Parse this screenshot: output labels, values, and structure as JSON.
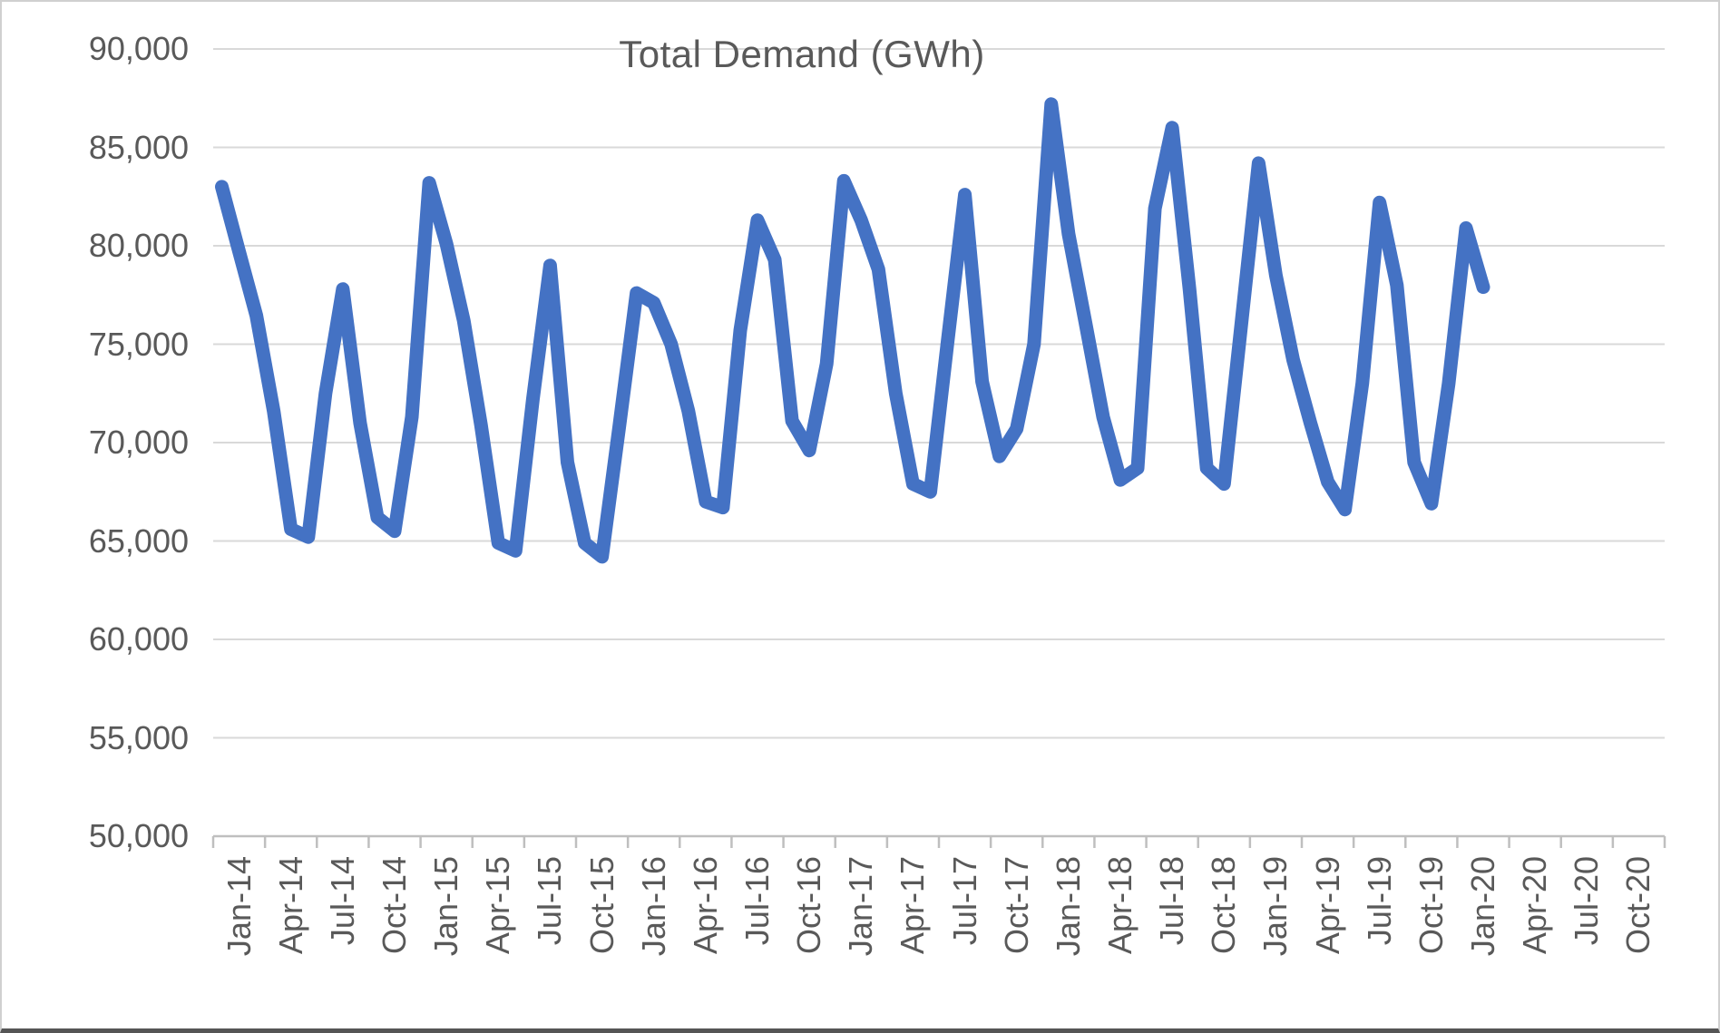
{
  "title": "Total Demand (GWh)",
  "chart_data": {
    "type": "line",
    "title": "Total Demand (GWh)",
    "xlabel": "",
    "ylabel": "",
    "legend": "none",
    "grid": "horizontal",
    "ylim": [
      50000,
      90000
    ],
    "y_ticks": [
      50000,
      55000,
      60000,
      65000,
      70000,
      75000,
      80000,
      85000,
      90000
    ],
    "y_tick_labels": [
      "50,000",
      "55,000",
      "60,000",
      "65,000",
      "70,000",
      "75,000",
      "80,000",
      "85,000",
      "90,000"
    ],
    "x_axis_tick_labels": [
      "Jan-14",
      "Apr-14",
      "Jul-14",
      "Oct-14",
      "Jan-15",
      "Apr-15",
      "Jul-15",
      "Oct-15",
      "Jan-16",
      "Apr-16",
      "Jul-16",
      "Oct-16",
      "Jan-17",
      "Apr-17",
      "Jul-17",
      "Oct-17",
      "Jan-18",
      "Apr-18",
      "Jul-18",
      "Oct-18",
      "Jan-19",
      "Apr-19",
      "Jul-19",
      "Oct-19",
      "Jan-20",
      "Apr-20",
      "Jul-20",
      "Oct-20"
    ],
    "x_axis_total_months": 84,
    "x": [
      "Jan-14",
      "Feb-14",
      "Mar-14",
      "Apr-14",
      "May-14",
      "Jun-14",
      "Jul-14",
      "Aug-14",
      "Sep-14",
      "Oct-14",
      "Nov-14",
      "Dec-14",
      "Jan-15",
      "Feb-15",
      "Mar-15",
      "Apr-15",
      "May-15",
      "Jun-15",
      "Jul-15",
      "Aug-15",
      "Sep-15",
      "Oct-15",
      "Nov-15",
      "Dec-15",
      "Jan-16",
      "Feb-16",
      "Mar-16",
      "Apr-16",
      "May-16",
      "Jun-16",
      "Jul-16",
      "Aug-16",
      "Sep-16",
      "Oct-16",
      "Nov-16",
      "Dec-16",
      "Jan-17",
      "Feb-17",
      "Mar-17",
      "Apr-17",
      "May-17",
      "Jun-17",
      "Jul-17",
      "Aug-17",
      "Sep-17",
      "Oct-17",
      "Nov-17",
      "Dec-17",
      "Jan-18",
      "Feb-18",
      "Mar-18",
      "Apr-18",
      "May-18",
      "Jun-18",
      "Jul-18",
      "Aug-18",
      "Sep-18",
      "Oct-18",
      "Nov-18",
      "Dec-18",
      "Jan-19",
      "Feb-19",
      "Mar-19",
      "Apr-19",
      "May-19",
      "Jun-19",
      "Jul-19",
      "Aug-19",
      "Sep-19",
      "Oct-19",
      "Nov-19",
      "Dec-19",
      "Jan-20",
      "Feb-20"
    ],
    "series": [
      {
        "name": "Total Demand",
        "color": "#4472C4",
        "values": [
          83000,
          79700,
          76450,
          71600,
          65600,
          65200,
          72500,
          77800,
          71000,
          66200,
          65500,
          71300,
          83200,
          80100,
          76200,
          70900,
          64900,
          64500,
          72200,
          79000,
          69000,
          64900,
          64200,
          70800,
          77600,
          77100,
          75000,
          71600,
          67000,
          66700,
          75700,
          81300,
          79300,
          71100,
          69600,
          74000,
          83300,
          81300,
          78800,
          72500,
          67900,
          67500,
          75100,
          82600,
          73100,
          69300,
          70700,
          75000,
          87200,
          80600,
          76000,
          71300,
          68100,
          68700,
          81900,
          86000,
          77800,
          68700,
          67900,
          76000,
          84200,
          78500,
          74200,
          71000,
          68000,
          66600,
          73000,
          82200,
          78000,
          69000,
          66900,
          73000,
          80900,
          77900
        ]
      }
    ],
    "colors": {
      "line": "#4472C4",
      "gridline": "#D9D9D9",
      "axis": "#BFBFBF",
      "labels": "#595959",
      "background": "#FFFFFF"
    }
  }
}
